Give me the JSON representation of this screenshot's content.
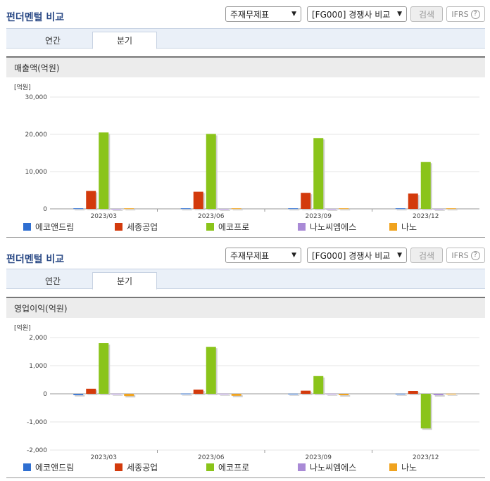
{
  "panels": [
    {
      "title": "펀더멘털 비교",
      "select_statement": "주재무제표",
      "select_peer": "[FG000] 경쟁사 비교",
      "search_label": "검색",
      "ifrs_label": "IFRS",
      "tabs": [
        {
          "label": "연간"
        },
        {
          "label": "분기"
        }
      ],
      "metric_label": "매출액(억원)",
      "unit_label": "[억원]"
    },
    {
      "title": "펀더멘털 비교",
      "select_statement": "주재무제표",
      "select_peer": "[FG000] 경쟁사 비교",
      "search_label": "검색",
      "ifrs_label": "IFRS",
      "tabs": [
        {
          "label": "연간"
        },
        {
          "label": "분기"
        }
      ],
      "metric_label": "영업이익(억원)",
      "unit_label": "[억원]"
    }
  ],
  "legend": [
    {
      "label": "에코앤드림",
      "color": "#2f6fd1"
    },
    {
      "label": "세종공업",
      "color": "#d33a0c"
    },
    {
      "label": "에코프로",
      "color": "#8ac41a"
    },
    {
      "label": "나노씨엠에스",
      "color": "#a98ad6"
    },
    {
      "label": "나노",
      "color": "#f0a31e"
    }
  ],
  "chart_data": [
    {
      "type": "bar",
      "ylabel": "[억원]",
      "ylim": [
        0,
        30000
      ],
      "yticks": [
        0,
        10000,
        20000,
        30000
      ],
      "categories": [
        "2023/03",
        "2023/06",
        "2023/09",
        "2023/12"
      ],
      "series": [
        {
          "name": "에코앤드림",
          "color": "#2f6fd1",
          "values": [
            150,
            150,
            150,
            150
          ]
        },
        {
          "name": "세종공업",
          "color": "#d33a0c",
          "values": [
            4800,
            4600,
            4300,
            4100
          ]
        },
        {
          "name": "에코프로",
          "color": "#8ac41a",
          "values": [
            20500,
            20100,
            19000,
            12600
          ]
        },
        {
          "name": "나노씨엠에스",
          "color": "#a98ad6",
          "values": [
            10,
            10,
            10,
            10
          ]
        },
        {
          "name": "나노",
          "color": "#f0a31e",
          "values": [
            150,
            150,
            150,
            150
          ]
        }
      ]
    },
    {
      "type": "bar",
      "ylabel": "[억원]",
      "ylim": [
        -2000,
        2000
      ],
      "yticks": [
        -2000,
        -1000,
        0,
        1000,
        2000
      ],
      "categories": [
        "2023/03",
        "2023/06",
        "2023/09",
        "2023/12"
      ],
      "series": [
        {
          "name": "에코앤드림",
          "color": "#2f6fd1",
          "values": [
            -45,
            10,
            5,
            5
          ]
        },
        {
          "name": "세종공업",
          "color": "#d33a0c",
          "values": [
            180,
            150,
            110,
            100
          ]
        },
        {
          "name": "에코프로",
          "color": "#8ac41a",
          "values": [
            1800,
            1670,
            630,
            -1230
          ]
        },
        {
          "name": "나노씨엠에스",
          "color": "#a98ad6",
          "values": [
            5,
            5,
            5,
            -50
          ]
        },
        {
          "name": "나노",
          "color": "#f0a31e",
          "values": [
            -80,
            -70,
            -50,
            5
          ]
        }
      ]
    }
  ]
}
